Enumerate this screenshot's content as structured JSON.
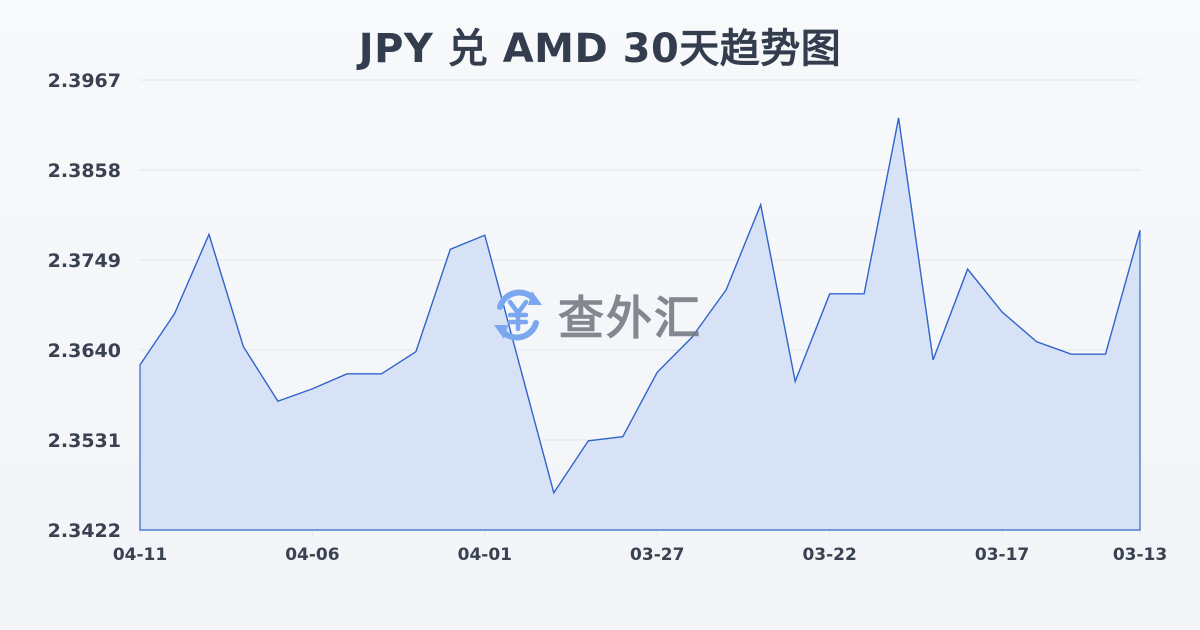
{
  "title": "JPY 兑 AMD 30天趋势图",
  "watermark": {
    "text": "查外汇",
    "icon": "yen-exchange-icon"
  },
  "colors": {
    "line": "#3366cc",
    "fill": "#d6e0f5",
    "grid": "#e3e5e9",
    "text": "#333d4e",
    "watermark_icon": "#7aa7f0"
  },
  "chart_data": {
    "type": "area",
    "title": "JPY 兑 AMD 30天趋势图",
    "xlabel": "",
    "ylabel": "",
    "ylim": [
      2.3422,
      2.3967
    ],
    "yticks": [
      "2.3967",
      "2.3858",
      "2.3749",
      "2.3640",
      "2.3531",
      "2.3422"
    ],
    "xticks": [
      "04-11",
      "04-06",
      "04-01",
      "03-27",
      "03-22",
      "03-17",
      "03-13"
    ],
    "grid": true,
    "legend": null,
    "x": [
      "04-11",
      "04-10",
      "04-09",
      "04-08",
      "04-07",
      "04-06",
      "04-05",
      "04-04",
      "04-03",
      "04-02",
      "04-01",
      "03-31",
      "03-30",
      "03-29",
      "03-28",
      "03-27",
      "03-26",
      "03-25",
      "03-24",
      "03-23",
      "03-22",
      "03-21",
      "03-20",
      "03-19",
      "03-18",
      "03-17",
      "03-16",
      "03-15",
      "03-14",
      "03-13"
    ],
    "series": [
      {
        "name": "JPY/AMD",
        "values": [
          2.3622,
          2.3684,
          2.378,
          2.3644,
          2.3578,
          2.3593,
          2.3611,
          2.3611,
          2.3638,
          2.3762,
          2.3779,
          2.3623,
          2.3467,
          2.353,
          2.3535,
          2.3613,
          2.3655,
          2.3713,
          2.3816,
          2.3602,
          2.3708,
          2.3708,
          2.3921,
          2.3628,
          2.3738,
          2.3686,
          2.365,
          2.3635,
          2.3635,
          2.3785
        ]
      }
    ]
  }
}
